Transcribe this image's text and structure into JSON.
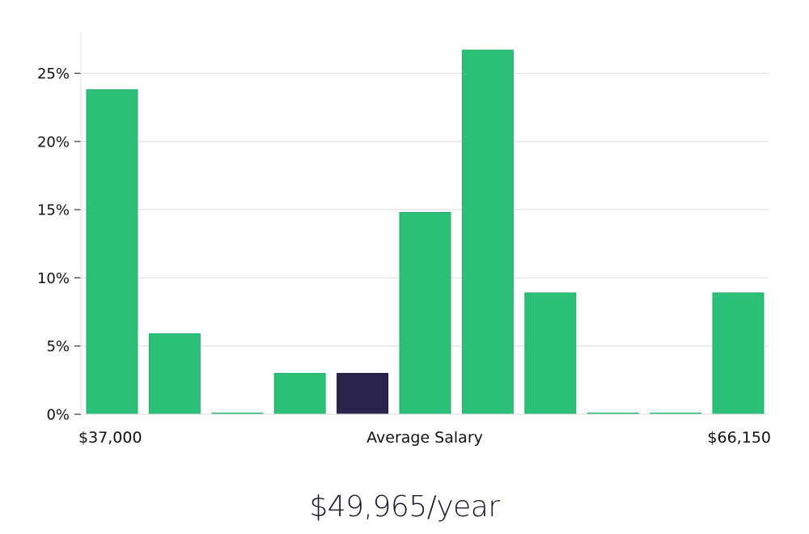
{
  "chart_data": {
    "type": "bar",
    "title": "",
    "xlabel": "Average Salary",
    "ylabel": "",
    "x_min_label": "$37,000",
    "x_max_label": "$66,150",
    "ylim": [
      0,
      28
    ],
    "yticks": [
      0,
      5,
      10,
      15,
      20,
      25
    ],
    "ytick_labels": [
      "0%",
      "5%",
      "10%",
      "15%",
      "20%",
      "25%"
    ],
    "grid": true,
    "legend": "none",
    "values": [
      23.8,
      5.9,
      0,
      3.0,
      3.0,
      14.8,
      26.7,
      8.9,
      0,
      0,
      8.9
    ],
    "highlight_index": 4,
    "colors": {
      "bar": "#2bbf78",
      "highlight": "#28244a",
      "grid": "#e2e2e2",
      "axis": "#e2e2e2"
    }
  },
  "summary": {
    "average_salary": "$49,965/year"
  }
}
